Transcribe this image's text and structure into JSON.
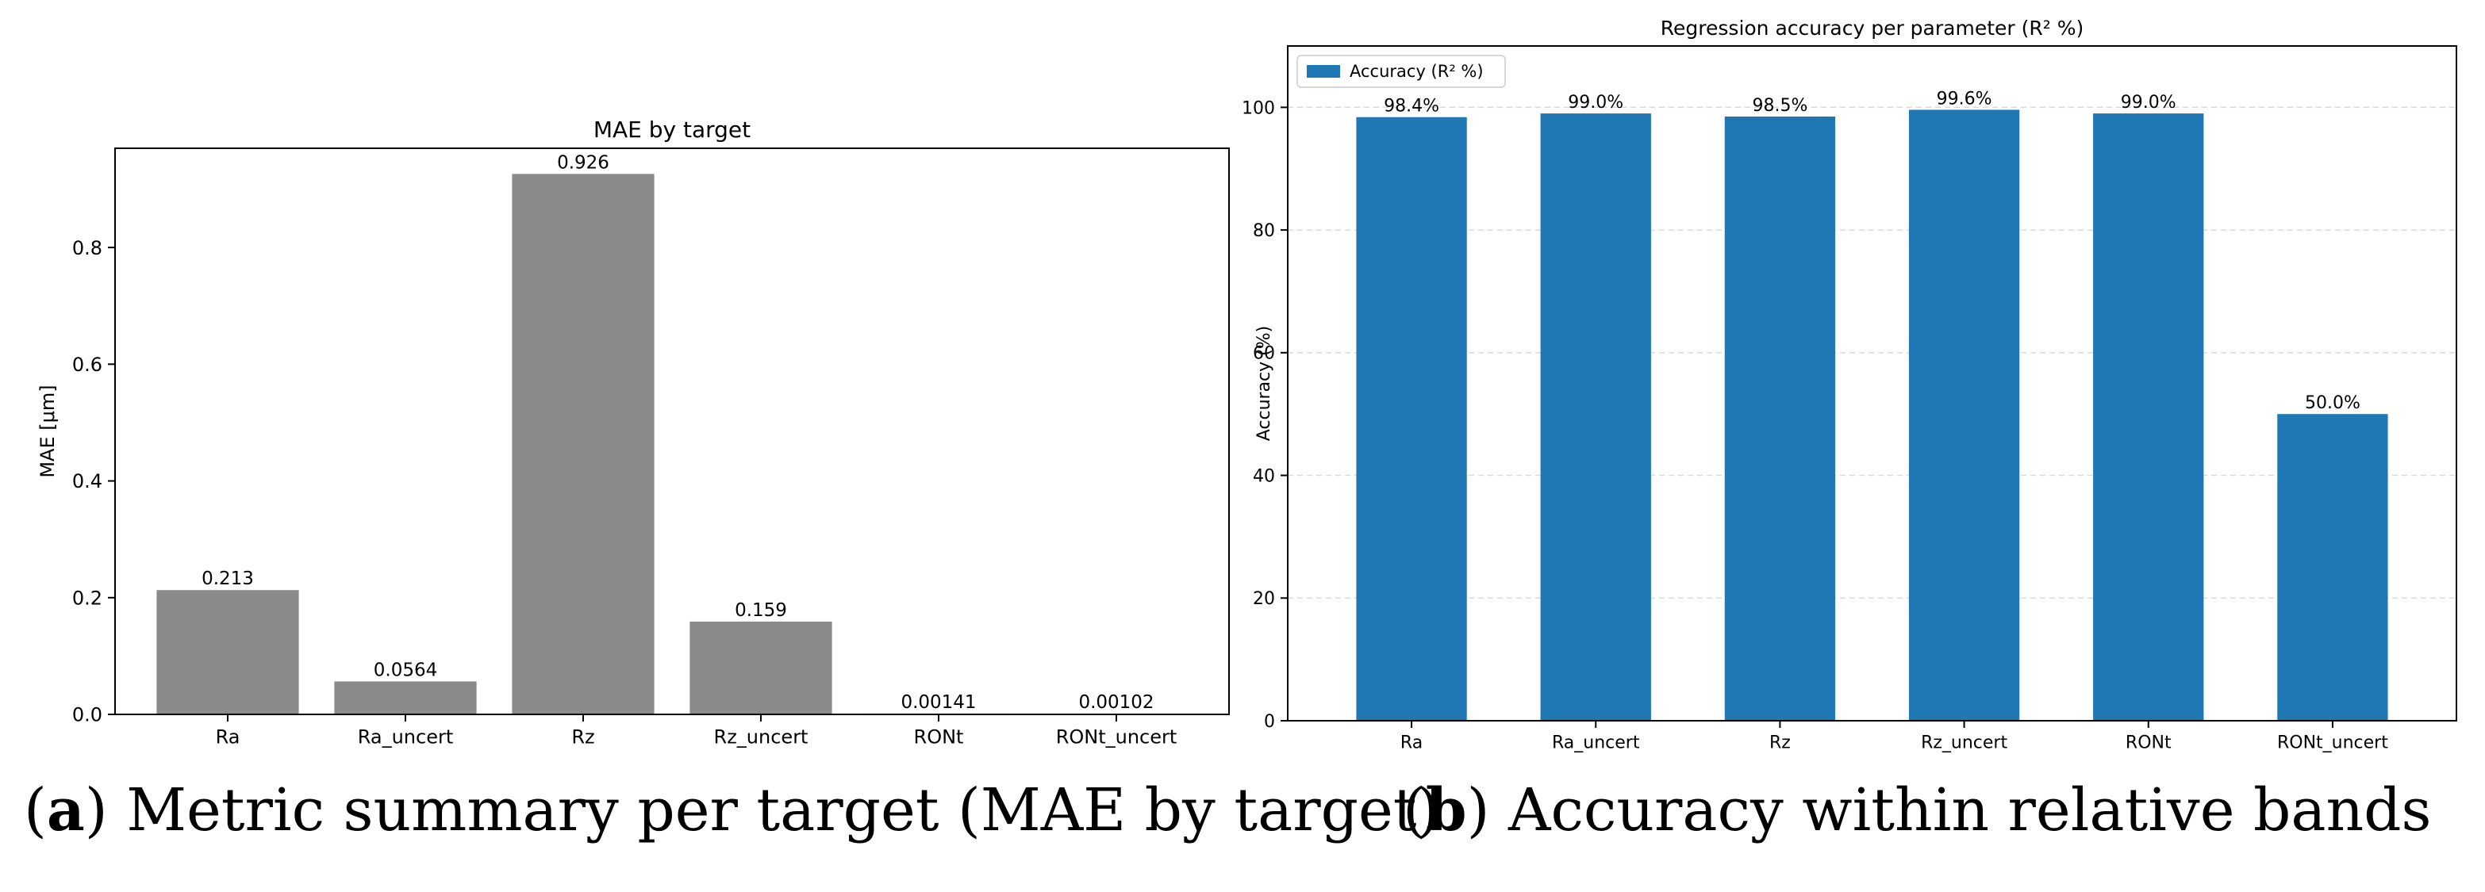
{
  "chart_data": [
    {
      "type": "bar",
      "title": "MAE by target",
      "xlabel": "",
      "ylabel": "MAE [μm]",
      "categories": [
        "Ra",
        "Ra_uncert",
        "Rz",
        "Rz_uncert",
        "RONt",
        "RONt_uncert"
      ],
      "values": [
        0.213,
        0.0564,
        0.926,
        0.159,
        0.00141,
        0.00102
      ],
      "value_labels": [
        "0.213",
        "0.0564",
        "0.926",
        "0.159",
        "0.00141",
        "0.00102"
      ],
      "ylim": [
        0,
        0.97
      ],
      "yticks": [
        0.0,
        0.2,
        0.4,
        0.6,
        0.8
      ],
      "ytick_labels": [
        "0.0",
        "0.2",
        "0.4",
        "0.6",
        "0.8"
      ],
      "grid": false,
      "legend": null,
      "color": "#8a8a8a"
    },
    {
      "type": "bar",
      "title": "Regression accuracy per parameter (R² %)",
      "xlabel": "",
      "ylabel": "Accuracy (%)",
      "categories": [
        "Ra",
        "Ra_uncert",
        "Rz",
        "Rz_uncert",
        "RONt",
        "RONt_uncert"
      ],
      "series": [
        {
          "name": "Accuracy (R² %)",
          "values": [
            98.4,
            99.0,
            98.5,
            99.6,
            99.0,
            50.0
          ]
        }
      ],
      "value_labels": [
        "98.4%",
        "99.0%",
        "98.5%",
        "99.6%",
        "99.0%",
        "50.0%"
      ],
      "ylim": [
        0,
        110
      ],
      "yticks": [
        0,
        20,
        40,
        60,
        80,
        100
      ],
      "ytick_labels": [
        "0",
        "20",
        "40",
        "60",
        "80",
        "100"
      ],
      "grid": true,
      "legend": "top-left",
      "color": "#1f77b4"
    }
  ],
  "captions": {
    "a_letter": "a",
    "a_text": "Metric summary per target (MAE by target)",
    "b_letter": "b",
    "b_text": "Accuracy within relative bands"
  }
}
